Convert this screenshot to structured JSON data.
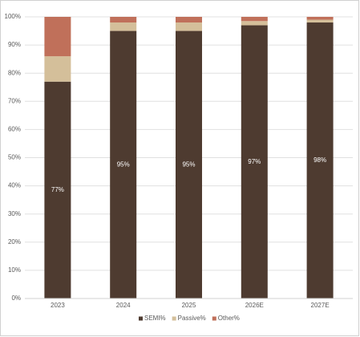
{
  "chart_data": {
    "type": "stacked_bar",
    "categories": [
      "2023",
      "2024",
      "2025",
      "2026E",
      "2027E"
    ],
    "series": [
      {
        "name": "SEMI%",
        "color": "#4e3b30",
        "values": [
          77,
          95,
          95,
          97,
          98
        ],
        "value_labels": [
          "77%",
          "95%",
          "95%",
          "97%",
          "98%"
        ]
      },
      {
        "name": "Passive%",
        "color": "#d4bf9a",
        "values": [
          9,
          3,
          3,
          1.5,
          1
        ]
      },
      {
        "name": "Other%",
        "color": "#c0705a",
        "values": [
          14,
          2,
          2,
          1.5,
          1
        ]
      }
    ],
    "ylim": [
      0,
      100
    ],
    "yticks": [
      {
        "value": 0,
        "label": "0%"
      },
      {
        "value": 10,
        "label": "10%"
      },
      {
        "value": 20,
        "label": "20%"
      },
      {
        "value": 30,
        "label": "30%"
      },
      {
        "value": 40,
        "label": "40%"
      },
      {
        "value": 50,
        "label": "50%"
      },
      {
        "value": 60,
        "label": "60%"
      },
      {
        "value": 70,
        "label": "70%"
      },
      {
        "value": 80,
        "label": "80%"
      },
      {
        "value": 90,
        "label": "90%"
      },
      {
        "value": 100,
        "label": "100%"
      }
    ],
    "grid": true,
    "legend": "bottom"
  }
}
